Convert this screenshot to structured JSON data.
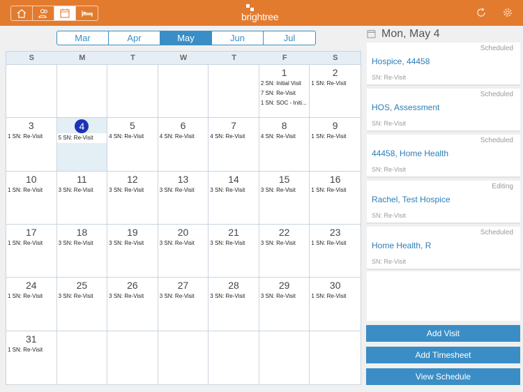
{
  "header": {
    "logo_text": "brightree",
    "nav": [
      {
        "name": "home-icon"
      },
      {
        "name": "patients-icon"
      },
      {
        "name": "calendar-icon",
        "active": true
      },
      {
        "name": "bed-icon"
      }
    ],
    "accent_color": "#e37b2f"
  },
  "months": {
    "tabs": [
      "Mar",
      "Apr",
      "May",
      "Jun",
      "Jul"
    ],
    "active": "May"
  },
  "calendar": {
    "weekdays": [
      "S",
      "M",
      "T",
      "W",
      "T",
      "F",
      "S"
    ],
    "today": 4,
    "cells": [
      {
        "day": "",
        "visits": []
      },
      {
        "day": "",
        "visits": []
      },
      {
        "day": "",
        "visits": []
      },
      {
        "day": "",
        "visits": []
      },
      {
        "day": "",
        "visits": []
      },
      {
        "day": "1",
        "visits": [
          "2 SN: Initial Visit",
          "7 SN: Re-Visit",
          "1 SN: SOC - Initi..."
        ]
      },
      {
        "day": "2",
        "visits": [
          "1 SN: Re-Visit"
        ]
      },
      {
        "day": "3",
        "visits": [
          "1 SN: Re-Visit"
        ]
      },
      {
        "day": "4",
        "visits": [
          "5 SN: Re-Visit"
        ]
      },
      {
        "day": "5",
        "visits": [
          "4 SN: Re-Visit"
        ]
      },
      {
        "day": "6",
        "visits": [
          "4 SN: Re-Visit"
        ]
      },
      {
        "day": "7",
        "visits": [
          "4 SN: Re-Visit"
        ]
      },
      {
        "day": "8",
        "visits": [
          "4 SN: Re-Visit"
        ]
      },
      {
        "day": "9",
        "visits": [
          "1 SN: Re-Visit"
        ]
      },
      {
        "day": "10",
        "visits": [
          "1 SN: Re-Visit"
        ]
      },
      {
        "day": "11",
        "visits": [
          "3 SN: Re-Visit"
        ]
      },
      {
        "day": "12",
        "visits": [
          "3 SN: Re-Visit"
        ]
      },
      {
        "day": "13",
        "visits": [
          "3 SN: Re-Visit"
        ]
      },
      {
        "day": "14",
        "visits": [
          "3 SN: Re-Visit"
        ]
      },
      {
        "day": "15",
        "visits": [
          "3 SN: Re-Visit"
        ]
      },
      {
        "day": "16",
        "visits": [
          "1 SN: Re-Visit"
        ]
      },
      {
        "day": "17",
        "visits": [
          "1 SN: Re-Visit"
        ]
      },
      {
        "day": "18",
        "visits": [
          "3 SN: Re-Visit"
        ]
      },
      {
        "day": "19",
        "visits": [
          "3 SN: Re-Visit"
        ]
      },
      {
        "day": "20",
        "visits": [
          "3 SN: Re-Visit"
        ]
      },
      {
        "day": "21",
        "visits": [
          "3 SN: Re-Visit"
        ]
      },
      {
        "day": "22",
        "visits": [
          "3 SN: Re-Visit"
        ]
      },
      {
        "day": "23",
        "visits": [
          "1 SN: Re-Visit"
        ]
      },
      {
        "day": "24",
        "visits": [
          "1 SN: Re-Visit"
        ]
      },
      {
        "day": "25",
        "visits": [
          "3 SN: Re-Visit"
        ]
      },
      {
        "day": "26",
        "visits": [
          "3 SN: Re-Visit"
        ]
      },
      {
        "day": "27",
        "visits": [
          "3 SN: Re-Visit"
        ]
      },
      {
        "day": "28",
        "visits": [
          "3 SN: Re-Visit"
        ]
      },
      {
        "day": "29",
        "visits": [
          "3 SN: Re-Visit"
        ]
      },
      {
        "day": "30",
        "visits": [
          "1 SN: Re-Visit"
        ]
      },
      {
        "day": "31",
        "visits": [
          "1 SN: Re-Visit"
        ]
      },
      {
        "day": "",
        "visits": []
      },
      {
        "day": "",
        "visits": []
      },
      {
        "day": "",
        "visits": []
      },
      {
        "day": "",
        "visits": []
      },
      {
        "day": "",
        "visits": []
      },
      {
        "day": "",
        "visits": []
      }
    ]
  },
  "schedule": {
    "date_title": "Mon, May 4",
    "visits": [
      {
        "status": "Scheduled",
        "name": "Hospice, 44458",
        "type": "SN: Re-Visit"
      },
      {
        "status": "Scheduled",
        "name": "HOS, Assessment",
        "type": "SN: Re-Visit"
      },
      {
        "status": "Scheduled",
        "name": "44458, Home Health",
        "type": "SN: Re-Visit"
      },
      {
        "status": "Editing",
        "name": "Rachel, Test Hospice",
        "type": "SN: Re-Visit"
      },
      {
        "status": "Scheduled",
        "name": "Home Health, R",
        "type": "SN: Re-Visit"
      }
    ]
  },
  "actions": {
    "add_visit": "Add Visit",
    "add_timesheet": "Add Timesheet",
    "view_schedule": "View Schedule"
  }
}
